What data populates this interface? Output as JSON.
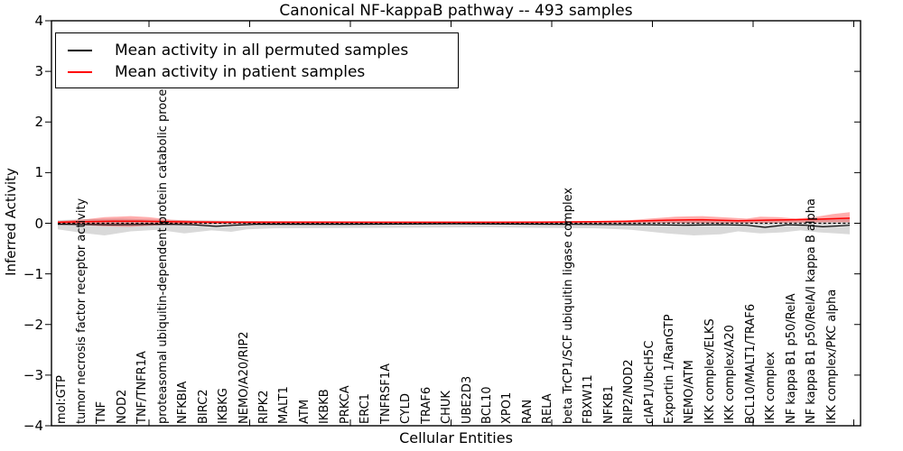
{
  "title": "Canonical NF-kappaB pathway -- 493 samples",
  "legend": {
    "items": [
      {
        "label": "Mean activity in all permuted samples",
        "color": "#000000"
      },
      {
        "label": "Mean activity in patient samples",
        "color": "#ff0000"
      }
    ]
  },
  "axes": {
    "ylabel": "Inferred Activity",
    "xlabel": "Cellular Entities",
    "ytick_labels": [
      "4",
      "3",
      "2",
      "1",
      "0",
      "−1",
      "−2",
      "−3",
      "−4"
    ],
    "ytick_values": [
      4,
      3,
      2,
      1,
      0,
      -1,
      -2,
      -3,
      -4
    ]
  },
  "colors": {
    "permuted_line": "#000000",
    "patient_line": "#ff0000",
    "permuted_band": "#d9d9d9",
    "patient_band": "rgba(255,0,0,0.32)",
    "zero_line": "#000000"
  },
  "chart_data": {
    "type": "line",
    "title": "Canonical NF-kappaB pathway -- 493 samples",
    "xlabel": "Cellular Entities",
    "ylabel": "Inferred Activity",
    "ylim": [
      -4,
      4
    ],
    "grid": false,
    "legend_position": "upper left",
    "x_units": "fraction of x-axis (0-1) across 39 cellular entities",
    "categories": [
      "mol:GTP",
      "tumor necrosis factor receptor activity",
      "TNF",
      "NOD2",
      "TNF/TNFR1A",
      "proteasomal ubiquitin-dependent protein catabolic process",
      "NFKBIA",
      "BIRC2",
      "IKBKG",
      "NEMO/A20/RIP2",
      "RIPK2",
      "MALT1",
      "ATM",
      "IKBKB",
      "PRKCA",
      "ERC1",
      "TNFRSF1A",
      "CYLD",
      "TRAF6",
      "CHUK",
      "UBE2D3",
      "BCL10",
      "XPO1",
      "RAN",
      "RELA",
      "beta TrCP1/SCF ubiquitin ligase complex",
      "FBXW11",
      "NFKB1",
      "RIP2/NOD2",
      "cIAP1/UbcH5C",
      "Exportin 1/RanGTP",
      "NEMO/ATM",
      "IKK complex/ELKS",
      "IKK complex/A20",
      "BCL10/MALT1/TRAF6",
      "IKK complex",
      "NF kappa B1 p50/RelA",
      "NF kappa B1 p50/RelA/I kappa B alpha",
      "IKK complex/PKC alpha"
    ],
    "series": [
      {
        "name": "Mean activity in all permuted samples",
        "style": "solid",
        "color": "#000000",
        "points": [
          [
            0,
            -0.02
          ],
          [
            0.07,
            -0.03
          ],
          [
            0.138,
            -0.02
          ],
          [
            0.171,
            -0.03
          ],
          [
            0.2,
            -0.06
          ],
          [
            0.222,
            -0.04
          ],
          [
            0.25,
            -0.02
          ],
          [
            0.363,
            -0.02
          ],
          [
            0.498,
            -0.01
          ],
          [
            0.634,
            -0.02
          ],
          [
            0.747,
            -0.03
          ],
          [
            0.791,
            -0.04
          ],
          [
            0.837,
            -0.03
          ],
          [
            0.87,
            -0.04
          ],
          [
            0.893,
            -0.08
          ],
          [
            0.921,
            -0.03
          ],
          [
            0.944,
            -0.04
          ],
          [
            0.966,
            -0.07
          ],
          [
            0.989,
            -0.05
          ],
          [
            1,
            -0.04
          ]
        ]
      },
      {
        "name": "Mean activity in patient samples",
        "style": "solid",
        "color": "#ff0000",
        "points": [
          [
            0,
            0.02
          ],
          [
            0.036,
            0.03
          ],
          [
            0.07,
            0.04
          ],
          [
            0.104,
            0.04
          ],
          [
            0.138,
            0.03
          ],
          [
            0.205,
            0.02
          ],
          [
            0.386,
            0.02
          ],
          [
            0.611,
            0.02
          ],
          [
            0.679,
            0.03
          ],
          [
            0.724,
            0.04
          ],
          [
            0.769,
            0.06
          ],
          [
            0.814,
            0.07
          ],
          [
            0.859,
            0.05
          ],
          [
            0.893,
            0.06
          ],
          [
            0.927,
            0.07
          ],
          [
            0.961,
            0.08
          ],
          [
            1,
            0.1
          ]
        ]
      },
      {
        "name": "zero reference",
        "style": "dashed",
        "color": "#000000",
        "points": [
          [
            0,
            0
          ],
          [
            1,
            0
          ]
        ]
      }
    ],
    "bands": [
      {
        "name": "permuted samples activity range",
        "color": "#d9d9d9",
        "opacity": 1,
        "top": [
          [
            0,
            0.06
          ],
          [
            0.036,
            0.08
          ],
          [
            0.081,
            0.09
          ],
          [
            0.126,
            0.07
          ],
          [
            0.171,
            0.06
          ],
          [
            0.216,
            0.05
          ],
          [
            0.273,
            0.04
          ],
          [
            0.408,
            0.03
          ],
          [
            0.543,
            0.03
          ],
          [
            0.679,
            0.04
          ],
          [
            0.724,
            0.05
          ],
          [
            0.769,
            0.06
          ],
          [
            0.814,
            0.07
          ],
          [
            0.859,
            0.06
          ],
          [
            0.904,
            0.08
          ],
          [
            0.949,
            0.08
          ],
          [
            1,
            0.1
          ]
        ],
        "bottom": [
          [
            0,
            -0.12
          ],
          [
            0.036,
            -0.2
          ],
          [
            0.059,
            -0.24
          ],
          [
            0.092,
            -0.16
          ],
          [
            0.126,
            -0.13
          ],
          [
            0.16,
            -0.2
          ],
          [
            0.194,
            -0.14
          ],
          [
            0.219,
            -0.17
          ],
          [
            0.239,
            -0.12
          ],
          [
            0.273,
            -0.1
          ],
          [
            0.408,
            -0.09
          ],
          [
            0.543,
            -0.08
          ],
          [
            0.611,
            -0.09
          ],
          [
            0.679,
            -0.1
          ],
          [
            0.724,
            -0.13
          ],
          [
            0.769,
            -0.2
          ],
          [
            0.803,
            -0.24
          ],
          [
            0.837,
            -0.22
          ],
          [
            0.859,
            -0.16
          ],
          [
            0.887,
            -0.2
          ],
          [
            0.915,
            -0.18
          ],
          [
            0.938,
            -0.14
          ],
          [
            0.961,
            -0.18
          ],
          [
            0.983,
            -0.2
          ],
          [
            1,
            -0.22
          ]
        ]
      },
      {
        "name": "patient samples activity range",
        "color": "rgba(255,0,0,0.32)",
        "opacity": 1,
        "top": [
          [
            0,
            0.04
          ],
          [
            0.036,
            0.08
          ],
          [
            0.059,
            0.12
          ],
          [
            0.092,
            0.14
          ],
          [
            0.115,
            0.12
          ],
          [
            0.143,
            0.07
          ],
          [
            0.171,
            0.05
          ],
          [
            0.239,
            0.04
          ],
          [
            0.34,
            0.04
          ],
          [
            0.476,
            0.03
          ],
          [
            0.611,
            0.04
          ],
          [
            0.679,
            0.04
          ],
          [
            0.713,
            0.05
          ],
          [
            0.747,
            0.09
          ],
          [
            0.78,
            0.13
          ],
          [
            0.814,
            0.14
          ],
          [
            0.848,
            0.11
          ],
          [
            0.87,
            0.09
          ],
          [
            0.887,
            0.13
          ],
          [
            0.91,
            0.12
          ],
          [
            0.932,
            0.09
          ],
          [
            0.955,
            0.12
          ],
          [
            0.978,
            0.18
          ],
          [
            1,
            0.22
          ]
        ],
        "bottom": [
          [
            0,
            -0.02
          ],
          [
            0.036,
            -0.04
          ],
          [
            0.059,
            -0.06
          ],
          [
            0.092,
            -0.07
          ],
          [
            0.115,
            -0.05
          ],
          [
            0.143,
            -0.03
          ],
          [
            0.171,
            -0.02
          ],
          [
            0.239,
            -0.01
          ],
          [
            0.476,
            0
          ],
          [
            0.713,
            0
          ],
          [
            0.747,
            0.01
          ],
          [
            0.837,
            0
          ],
          [
            0.904,
            0.01
          ],
          [
            0.972,
            0.02
          ],
          [
            1,
            0.02
          ]
        ]
      }
    ]
  }
}
